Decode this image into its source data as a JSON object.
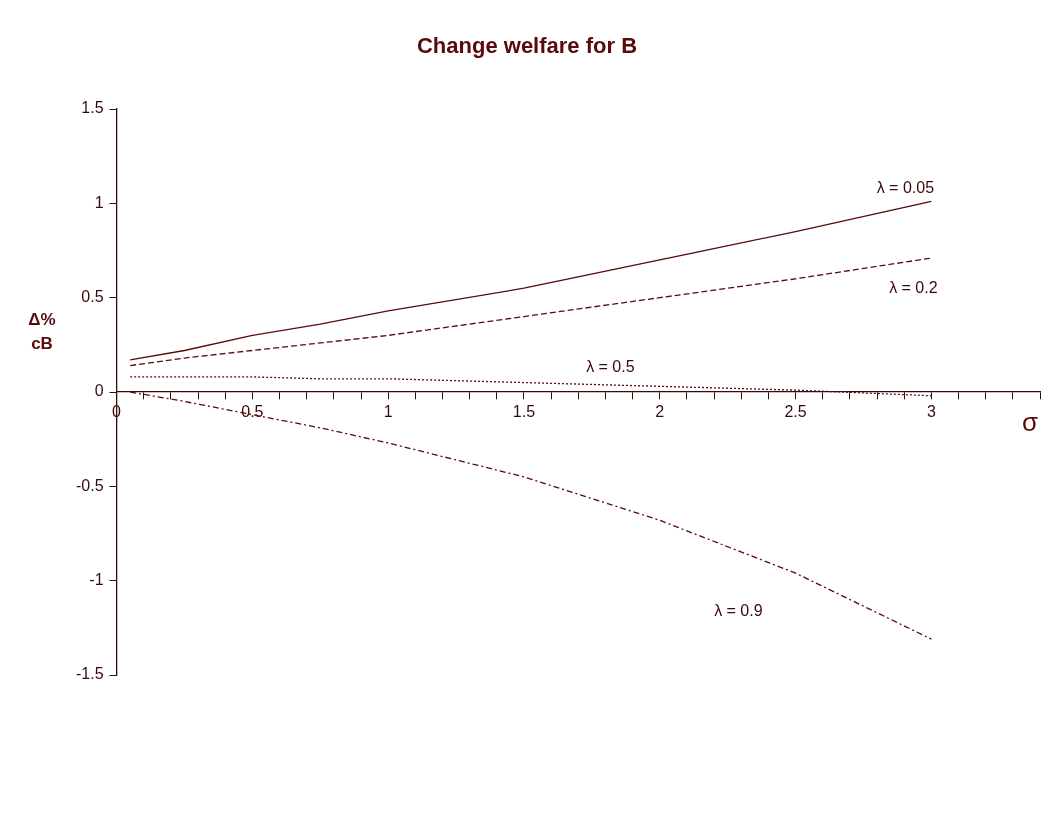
{
  "chart_data": {
    "type": "line",
    "title": "Change welfare for B",
    "xlabel": "σ",
    "ylabel": "Δ%\ncB",
    "x": [
      0.05,
      0.25,
      0.5,
      0.75,
      1,
      1.5,
      2,
      2.5,
      3
    ],
    "series": [
      {
        "name": "λ = 0.05",
        "color": "#5a0a0a",
        "line_style": "solid",
        "values": [
          0.17,
          0.22,
          0.3,
          0.36,
          0.43,
          0.55,
          0.7,
          0.85,
          1.01
        ]
      },
      {
        "name": "λ = 0.2",
        "color": "#5a0a0a",
        "line_style": "dashed",
        "values": [
          0.14,
          0.18,
          0.22,
          0.26,
          0.3,
          0.4,
          0.5,
          0.6,
          0.71
        ]
      },
      {
        "name": "λ = 0.5",
        "color": "#5a0a0a",
        "line_style": "dotted",
        "values": [
          0.08,
          0.08,
          0.08,
          0.07,
          0.07,
          0.05,
          0.03,
          0.01,
          -0.02
        ]
      },
      {
        "name": "λ = 0.9",
        "color": "#5a0a0a",
        "line_style": "dashdot",
        "values": [
          0,
          -0.05,
          -0.12,
          -0.19,
          -0.27,
          -0.45,
          -0.68,
          -0.96,
          -1.31
        ]
      }
    ],
    "xlim": [
      0,
      3.4
    ],
    "ylim": [
      -1.5,
      1.5
    ],
    "xticks": [
      0,
      {
        "value": 0.1,
        "label": null
      },
      {
        "value": 0.2,
        "label": null
      },
      {
        "value": 0.3,
        "label": null
      },
      {
        "value": 0.4,
        "label": null
      },
      0.5,
      {
        "value": 0.6,
        "label": null
      },
      {
        "value": 0.7,
        "label": null
      },
      {
        "value": 0.8,
        "label": null
      },
      {
        "value": 0.9,
        "label": null
      },
      1,
      {
        "value": 1.1,
        "label": null
      },
      {
        "value": 1.2,
        "label": null
      },
      {
        "value": 1.3,
        "label": null
      },
      {
        "value": 1.4,
        "label": null
      },
      1.5,
      {
        "value": 1.6,
        "label": null
      },
      {
        "value": 1.7,
        "label": null
      },
      {
        "value": 1.8,
        "label": null
      },
      {
        "value": 1.9,
        "label": null
      },
      2,
      {
        "value": 2.1,
        "label": null
      },
      {
        "value": 2.2,
        "label": null
      },
      {
        "value": 2.3,
        "label": null
      },
      {
        "value": 2.4,
        "label": null
      },
      2.5,
      {
        "value": 2.6,
        "label": null
      },
      {
        "value": 2.7,
        "label": null
      },
      {
        "value": 2.8,
        "label": null
      },
      {
        "value": 2.9,
        "label": null
      },
      3,
      {
        "value": 3.1,
        "label": null
      },
      {
        "value": 3.2,
        "label": null
      },
      {
        "value": 3.3,
        "label": null
      },
      {
        "value": 3.4,
        "label": null
      }
    ],
    "yticks": [
      -1.5,
      -1,
      -0.5,
      0,
      0.5,
      1,
      1.5
    ],
    "grid": false,
    "legend": false,
    "marker": "none"
  }
}
